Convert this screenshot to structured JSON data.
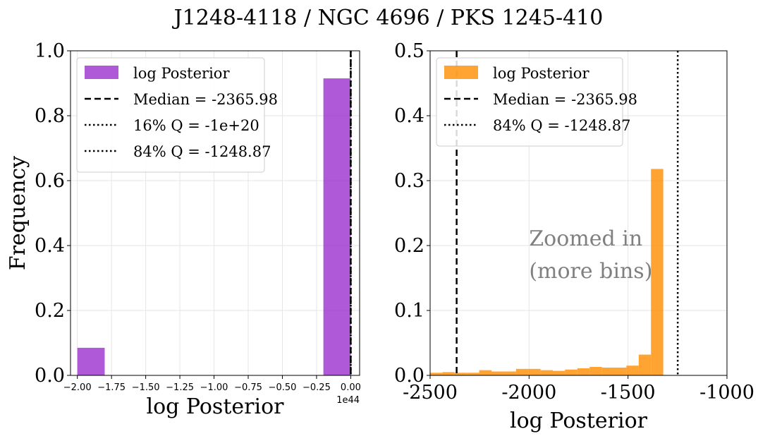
{
  "suptitle": "J1248-4118 / NGC 4696 / PKS 1245-410",
  "chart_data": [
    {
      "type": "bar",
      "panel": "left",
      "xlabel": "log Posterior",
      "ylabel": "Frequency",
      "x_offset_label": "1e44",
      "xlim": [
        -2.05,
        0.065
      ],
      "ylim": [
        0,
        1.0
      ],
      "x_unit_scale": "1e44",
      "xticks": [
        -2.0,
        -1.75,
        -1.5,
        -1.25,
        -1.0,
        -0.75,
        -0.5,
        -0.25,
        0.0
      ],
      "xtick_labels": [
        "−2.00",
        "−1.75",
        "−1.50",
        "−1.25",
        "−1.00",
        "−0.75",
        "−0.50",
        "−0.25",
        "0.00"
      ],
      "yticks": [
        0.0,
        0.2,
        0.4,
        0.6,
        0.8,
        1.0
      ],
      "ytick_labels": [
        "0.0",
        "0.2",
        "0.4",
        "0.6",
        "0.8",
        "1.0"
      ],
      "grid": true,
      "color": "#9b30d0",
      "bins": [
        {
          "x0": -2.0,
          "x1": -1.8,
          "value": 0.085
        },
        {
          "x0": -0.2,
          "x1": 0.0,
          "value": 0.915
        }
      ],
      "vlines": [
        {
          "x": 0.0,
          "style": "dashed"
        },
        {
          "x": 0.0,
          "style": "dotted"
        },
        {
          "x": 0.0,
          "style": "dotted"
        }
      ],
      "legend": {
        "position": "upper-left",
        "entries": [
          {
            "label": "log Posterior",
            "kind": "patch"
          },
          {
            "label": "Median = -2365.98",
            "kind": "dashed"
          },
          {
            "label": "16% Q = -1e+20",
            "kind": "dotted"
          },
          {
            "label": "84% Q = -1248.87",
            "kind": "dotted"
          }
        ]
      }
    },
    {
      "type": "bar",
      "panel": "right",
      "xlabel": "log Posterior",
      "xlim": [
        -2500,
        -1000
      ],
      "ylim": [
        0,
        0.5
      ],
      "xticks": [
        -2500,
        -2000,
        -1500,
        -1000
      ],
      "xtick_labels": [
        "-2500",
        "-2000",
        "-1500",
        "-1000"
      ],
      "yticks": [
        0.0,
        0.1,
        0.2,
        0.3,
        0.4,
        0.5
      ],
      "ytick_labels": [
        "0.0",
        "0.1",
        "0.2",
        "0.3",
        "0.4",
        "0.5"
      ],
      "grid": true,
      "color": "#ff8c00",
      "bin_width": 62,
      "bins_start": -2500,
      "values": [
        0.004,
        0.005,
        0.004,
        0.004,
        0.008,
        0.006,
        0.006,
        0.01,
        0.01,
        0.008,
        0.007,
        0.009,
        0.011,
        0.013,
        0.012,
        0.012,
        0.015,
        0.032,
        0.318
      ],
      "vlines": [
        {
          "x": -2365.98,
          "style": "dashed"
        },
        {
          "x": -1248.87,
          "style": "dotted"
        }
      ],
      "annotation": [
        "Zoomed in",
        "(more bins)"
      ],
      "legend": {
        "position": "upper-left",
        "entries": [
          {
            "label": "log Posterior",
            "kind": "patch"
          },
          {
            "label": "Median = -2365.98",
            "kind": "dashed"
          },
          {
            "label": "84% Q = -1248.87",
            "kind": "dotted"
          }
        ]
      }
    }
  ]
}
